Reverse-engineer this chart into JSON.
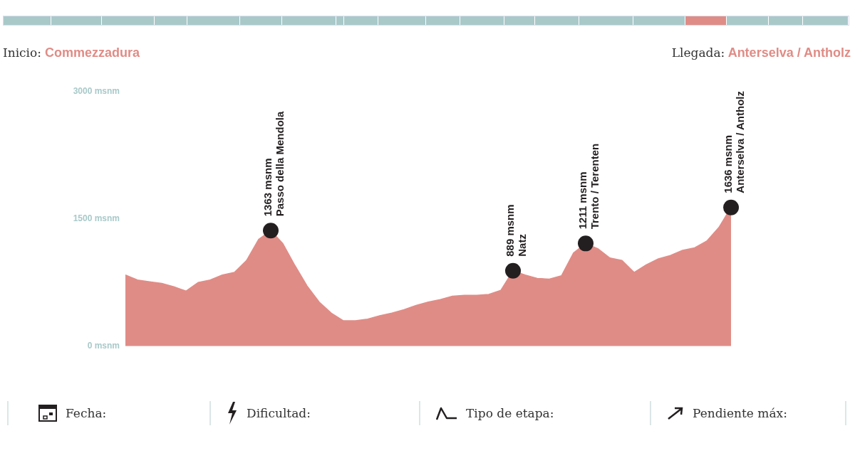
{
  "chart_data": {
    "type": "area",
    "categories": [
      null,
      null,
      null,
      null,
      null,
      null,
      null,
      null,
      null,
      null,
      null,
      null,
      null,
      null,
      null,
      null,
      null,
      null,
      null,
      null,
      null,
      null,
      null,
      null,
      null,
      null,
      null,
      null,
      null,
      null,
      null,
      null,
      null,
      null,
      null,
      null,
      null,
      null,
      null,
      null,
      null,
      null,
      null,
      null,
      null,
      null,
      null,
      null,
      null,
      null,
      null
    ],
    "ylim": [
      0,
      3000
    ],
    "yticks": [
      {
        "value": 0,
        "label": "0 msnm"
      },
      {
        "value": 1500,
        "label": "1500 msnm"
      },
      {
        "value": 3000,
        "label": "3000 msnm"
      }
    ],
    "tick_labels": "y",
    "grid": false,
    "legend": false,
    "series": [
      {
        "color": "#e08c86",
        "values": [
          840,
          780,
          760,
          740,
          700,
          650,
          750,
          780,
          840,
          870,
          1010,
          1260,
          1363,
          1210,
          950,
          710,
          520,
          390,
          300,
          300,
          320,
          360,
          390,
          430,
          480,
          520,
          550,
          590,
          600,
          600,
          610,
          660,
          889,
          840,
          800,
          790,
          830,
          1100,
          1211,
          1150,
          1040,
          1010,
          870,
          960,
          1030,
          1070,
          1130,
          1160,
          1240,
          1400,
          1636
        ],
        "value_labels": [
          null,
          null,
          null,
          null,
          null,
          null,
          null,
          null,
          null,
          null,
          null,
          null,
          "1363 msnm\nPasso della Mendola",
          null,
          null,
          null,
          null,
          null,
          null,
          null,
          null,
          null,
          null,
          null,
          null,
          null,
          null,
          null,
          null,
          null,
          null,
          null,
          "889 msnm\nNatz",
          null,
          null,
          null,
          null,
          null,
          "1211 msnm\nTrento / Terenten",
          null,
          null,
          null,
          null,
          null,
          null,
          null,
          null,
          null,
          null,
          null,
          "1636 msnm\nAnterselva / Antholz"
        ]
      }
    ],
    "annotations": [
      "Inicio: Commezzadura",
      "Llegada: Anterselva / Antholz",
      "Fecha:",
      "Dificultad:",
      "Tipo de etapa:",
      "Pendiente máx:"
    ]
  }
}
